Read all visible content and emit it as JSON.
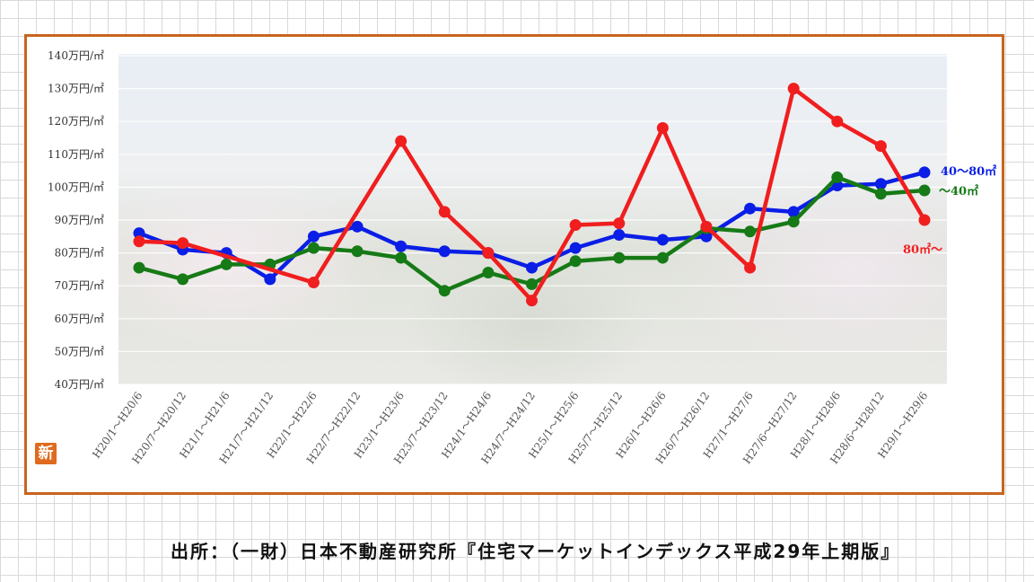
{
  "chart_data": {
    "type": "line",
    "categories": [
      "H20/1～H20/6",
      "H20/7～H20/12",
      "H21/1～H21/6",
      "H21/7～H21/12",
      "H22/1～H22/6",
      "H22/7～H22/12",
      "H23/1～H23/6",
      "H23/7～H23/12",
      "H24/1～H24/6",
      "H24/7～H24/12",
      "H25/1～H25/6",
      "H25/7～H25/12",
      "H26/1～H26/6",
      "H26/7～H26/12",
      "H27/1～H27/6",
      "H27/6～H27/12",
      "H28/1～H28/6",
      "H28/6～H28/12",
      "H29/1～H29/6"
    ],
    "y_ticks": [
      "140万円/㎡",
      "130万円/㎡",
      "120万円/㎡",
      "110万円/㎡",
      "100万円/㎡",
      "90万円/㎡",
      "80万円/㎡",
      "70万円/㎡",
      "60万円/㎡",
      "50万円/㎡",
      "40万円/㎡"
    ],
    "ylim": [
      40,
      140
    ],
    "unit": "万円/㎡",
    "grid": true,
    "series": [
      {
        "name": "40～80㎡",
        "color": "#0a1ee6",
        "values": [
          86,
          81,
          80,
          72,
          85,
          88,
          82,
          80.5,
          80,
          75.5,
          81.5,
          85.5,
          84,
          85,
          93.5,
          92.5,
          100.5,
          101,
          104.5
        ]
      },
      {
        "name": "～40㎡",
        "color": "#167a16",
        "values": [
          75.5,
          72,
          76.5,
          76.5,
          81.5,
          80.5,
          78.5,
          68.5,
          74,
          70.5,
          77.5,
          78.5,
          78.5,
          87.5,
          86.5,
          89.5,
          103,
          98,
          99
        ]
      },
      {
        "name": "80㎡～",
        "color": "#f01e1e",
        "values": [
          83.5,
          83,
          null,
          null,
          71,
          null,
          114,
          92.5,
          80,
          65.5,
          88.5,
          89,
          118,
          88,
          75.5,
          130,
          120,
          112.5,
          90
        ]
      }
    ]
  },
  "source_text": "出所：（一財）日本不動産研究所『住宅マーケットインデックス平成29年上期版』",
  "logo_char": "新"
}
